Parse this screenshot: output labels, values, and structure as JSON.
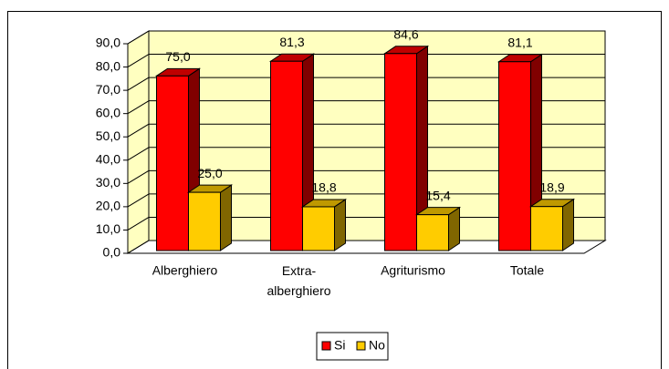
{
  "chart_data": {
    "type": "bar3d",
    "categories": [
      "Alberghiero",
      "Extra-alberghiero",
      "Agriturismo",
      "Totale"
    ],
    "series": [
      {
        "name": "Si",
        "color": "#ff0000",
        "values": [
          75.0,
          81.3,
          84.6,
          81.1
        ],
        "value_labels": [
          "75,0",
          "81,3",
          "84,6",
          "81,1"
        ]
      },
      {
        "name": "No",
        "color": "#ffcc00",
        "values": [
          25.0,
          18.8,
          15.4,
          18.9
        ],
        "value_labels": [
          "25,0",
          "18,8",
          "15,4",
          "18,9"
        ]
      }
    ],
    "ylim": [
      0,
      90
    ],
    "yticks": [
      {
        "value": 0,
        "label": "0,0"
      },
      {
        "value": 10,
        "label": "10,0"
      },
      {
        "value": 20,
        "label": "20,0"
      },
      {
        "value": 30,
        "label": "30,0"
      },
      {
        "value": 40,
        "label": "40,0"
      },
      {
        "value": 50,
        "label": "50,0"
      },
      {
        "value": 60,
        "label": "60,0"
      },
      {
        "value": 70,
        "label": "70,0"
      },
      {
        "value": 80,
        "label": "80,0"
      },
      {
        "value": 90,
        "label": "90,0"
      }
    ],
    "grid": true,
    "legend": "bottom"
  }
}
